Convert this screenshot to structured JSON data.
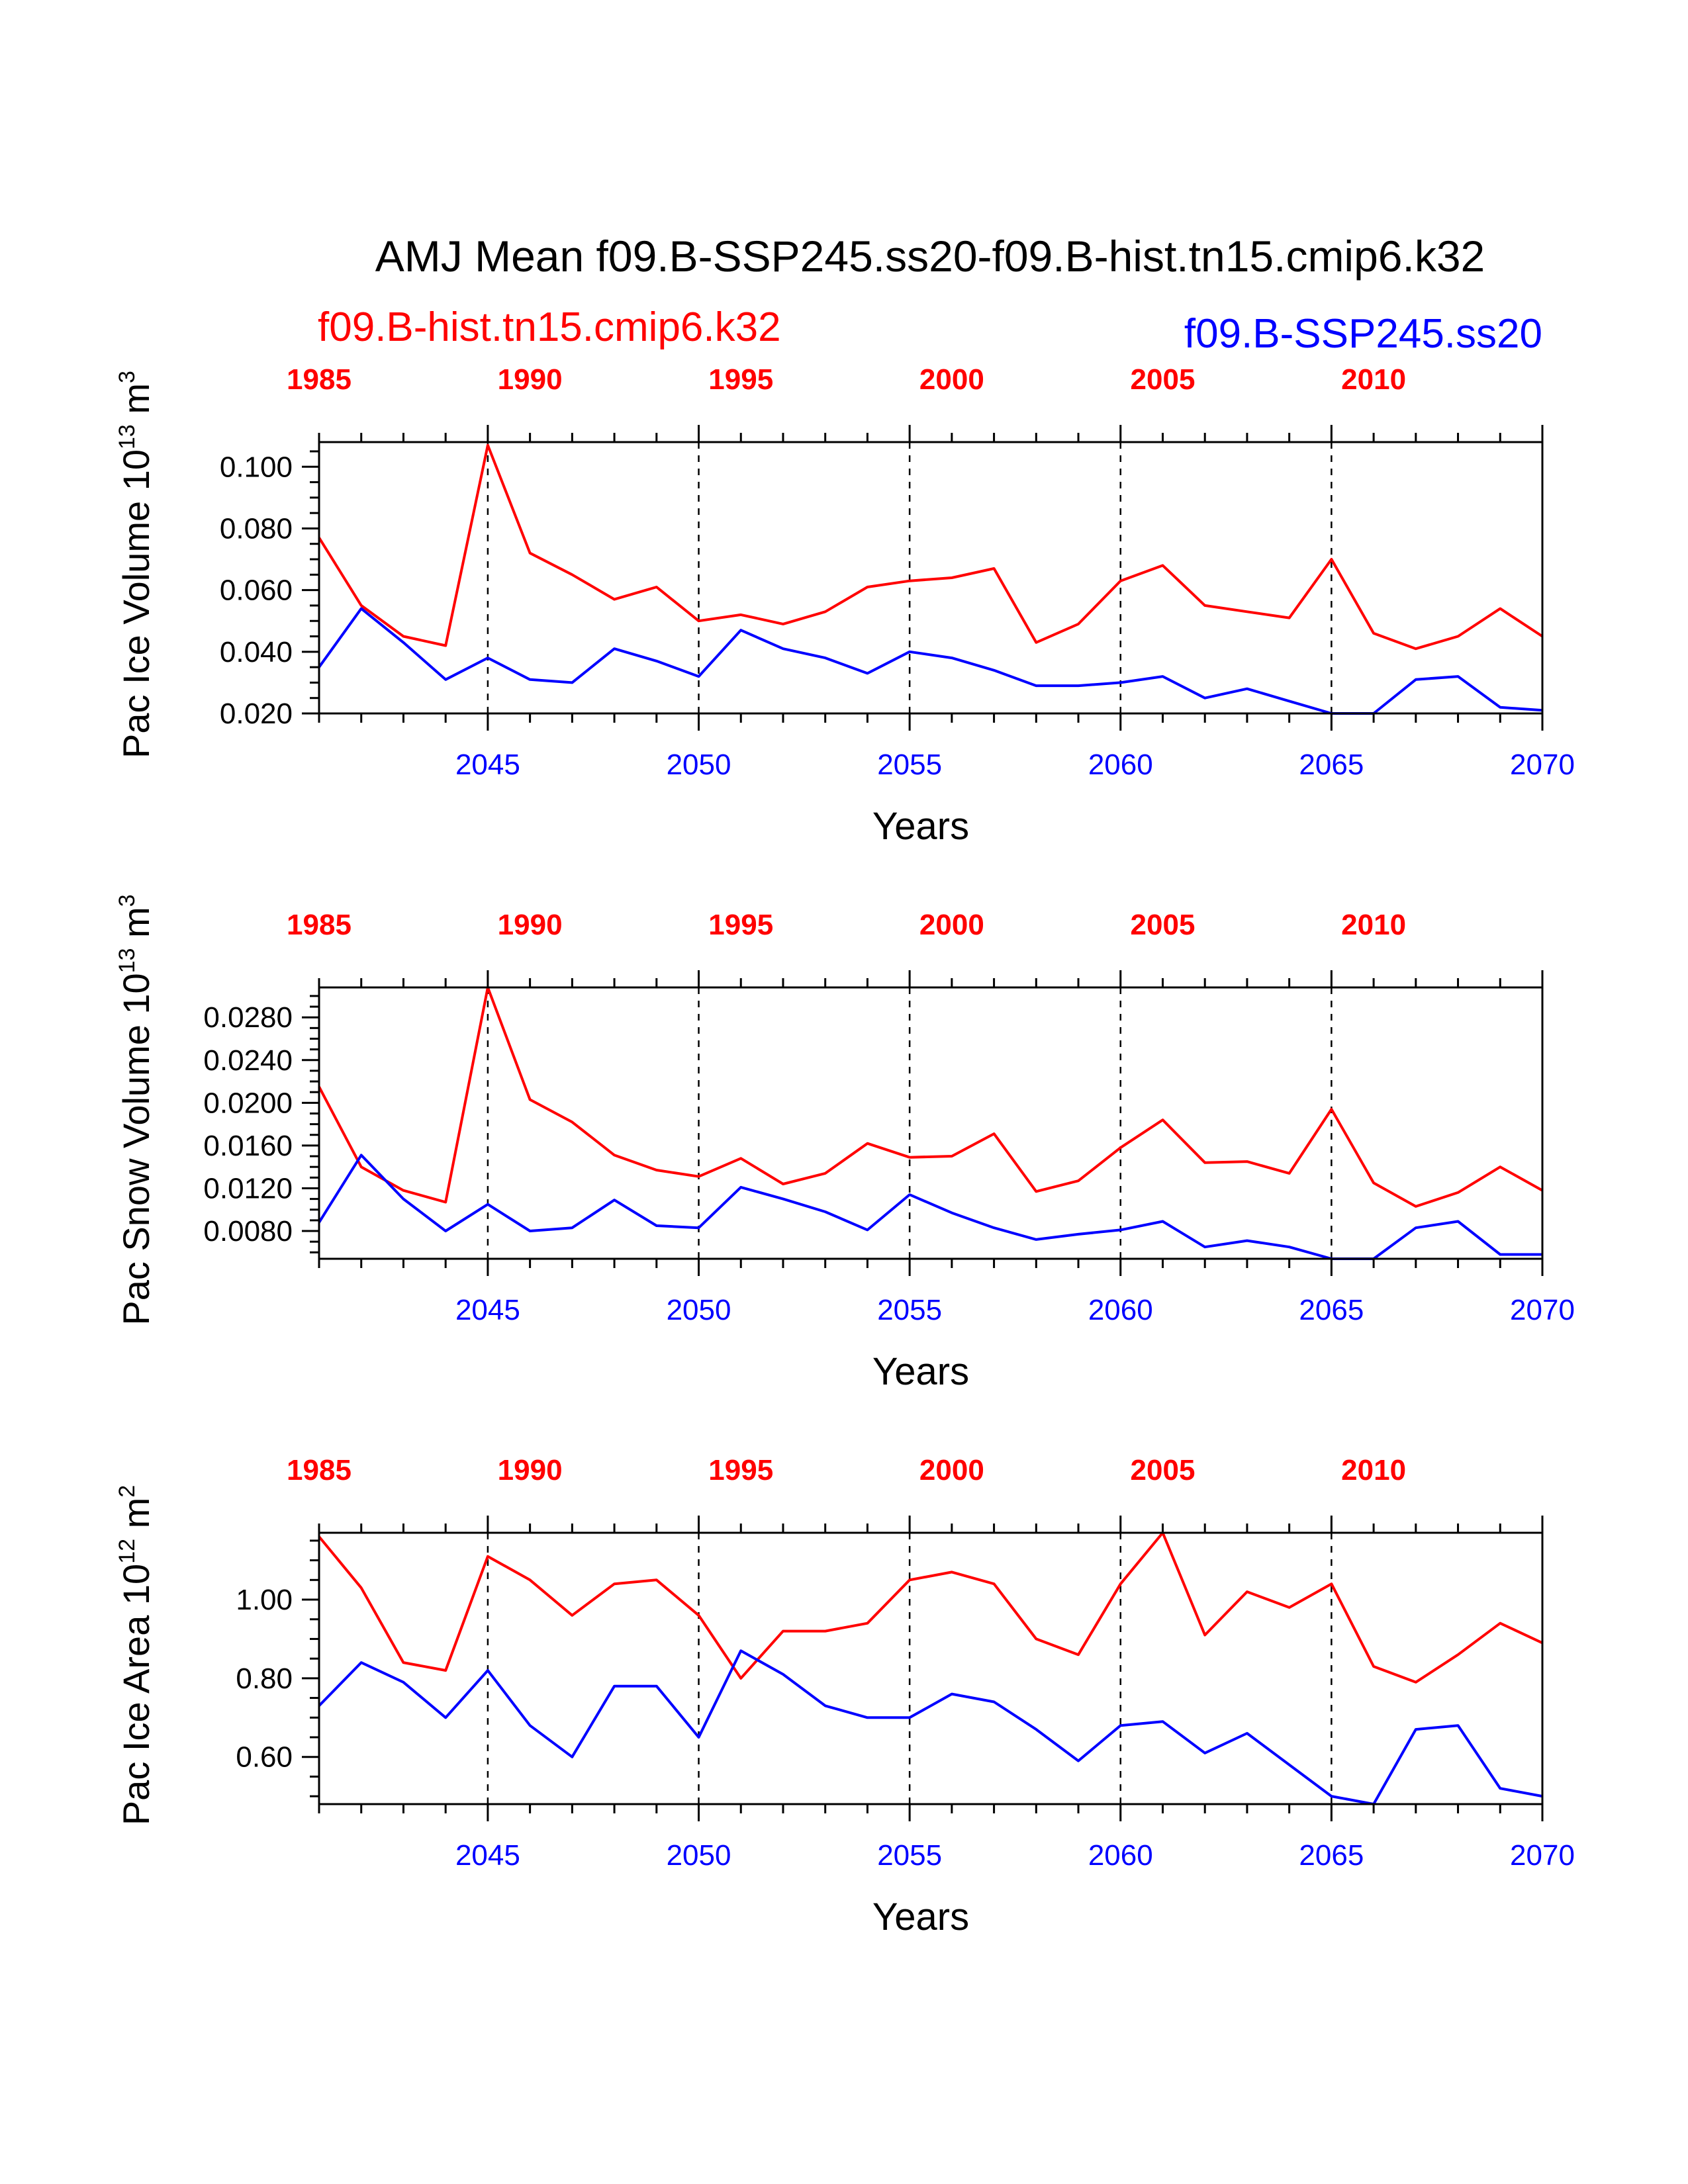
{
  "title": "AMJ Mean f09.B-SSP245.ss20-f09.B-hist.tn15.cmip6.k32",
  "subtitle_left": "f09.B-hist.tn15.cmip6.k32",
  "subtitle_right": "f09.B-SSP245.ss20",
  "colors": {
    "hist": "#ff0000",
    "ssp": "#0000ff"
  },
  "chart_data": [
    {
      "type": "line",
      "ylabel": "Pac Ice Volume 10",
      "ylabel_exp": "13",
      "ylabel_unit": " m",
      "ylabel_unit_exp": "3",
      "xlabel": "Years",
      "xlim": [
        2041,
        2070
      ],
      "ylim": [
        0.02,
        0.108
      ],
      "yticks": [
        0.02,
        0.04,
        0.06,
        0.08,
        0.1
      ],
      "ytick_labels": [
        "0.020",
        "0.040",
        "0.060",
        "0.080",
        "0.100"
      ],
      "x": [
        2041,
        2042,
        2043,
        2044,
        2045,
        2046,
        2047,
        2048,
        2049,
        2050,
        2051,
        2052,
        2053,
        2054,
        2055,
        2056,
        2057,
        2058,
        2059,
        2060,
        2061,
        2062,
        2063,
        2064,
        2065,
        2066,
        2067,
        2068,
        2069,
        2070
      ],
      "series": [
        {
          "key": "hist",
          "values": [
            0.077,
            0.055,
            0.045,
            0.042,
            0.107,
            0.072,
            0.065,
            0.057,
            0.061,
            0.05,
            0.052,
            0.049,
            0.053,
            0.061,
            0.063,
            0.064,
            0.067,
            0.043,
            0.049,
            0.063,
            0.068,
            0.055,
            0.053,
            0.051,
            0.07,
            0.046,
            0.041,
            0.045,
            0.054,
            0.045
          ]
        },
        {
          "key": "ssp",
          "values": [
            0.035,
            0.054,
            0.043,
            0.031,
            0.038,
            0.031,
            0.03,
            0.041,
            0.037,
            0.032,
            0.047,
            0.041,
            0.038,
            0.033,
            0.04,
            0.038,
            0.034,
            0.029,
            0.029,
            0.03,
            0.032,
            0.025,
            0.028,
            0.024,
            0.02,
            0.02,
            0.031,
            0.032,
            0.022,
            0.021
          ]
        }
      ]
    },
    {
      "type": "line",
      "ylabel": "Pac Snow Volume 10",
      "ylabel_exp": "13",
      "ylabel_unit": " m",
      "ylabel_unit_exp": "3",
      "xlabel": "Years",
      "xlim": [
        2041,
        2070
      ],
      "ylim": [
        0.0054,
        0.0308
      ],
      "yticks": [
        0.008,
        0.012,
        0.016,
        0.02,
        0.024,
        0.028
      ],
      "ytick_labels": [
        "0.0080",
        "0.0120",
        "0.0160",
        "0.0200",
        "0.0240",
        "0.0280"
      ],
      "x": [
        2041,
        2042,
        2043,
        2044,
        2045,
        2046,
        2047,
        2048,
        2049,
        2050,
        2051,
        2052,
        2053,
        2054,
        2055,
        2056,
        2057,
        2058,
        2059,
        2060,
        2061,
        2062,
        2063,
        2064,
        2065,
        2066,
        2067,
        2068,
        2069,
        2070
      ],
      "series": [
        {
          "key": "hist",
          "values": [
            0.0215,
            0.014,
            0.0118,
            0.0107,
            0.0308,
            0.0203,
            0.0182,
            0.0151,
            0.0137,
            0.0131,
            0.0148,
            0.0124,
            0.0134,
            0.0162,
            0.0149,
            0.015,
            0.0171,
            0.0117,
            0.0127,
            0.0158,
            0.0184,
            0.0144,
            0.0145,
            0.0134,
            0.0194,
            0.0125,
            0.0103,
            0.0116,
            0.014,
            0.0118
          ]
        },
        {
          "key": "ssp",
          "values": [
            0.0088,
            0.0151,
            0.011,
            0.008,
            0.0105,
            0.008,
            0.0083,
            0.0109,
            0.0085,
            0.0083,
            0.0121,
            0.011,
            0.0098,
            0.0081,
            0.0114,
            0.0097,
            0.0083,
            0.0072,
            0.0077,
            0.0081,
            0.0089,
            0.0065,
            0.0071,
            0.0065,
            0.0054,
            0.0054,
            0.0083,
            0.0089,
            0.0058,
            0.0058
          ]
        }
      ]
    },
    {
      "type": "line",
      "ylabel": "Pac Ice Area 10",
      "ylabel_exp": "12",
      "ylabel_unit": " m",
      "ylabel_unit_exp": "2",
      "xlabel": "Years",
      "xlim": [
        2041,
        2070
      ],
      "ylim": [
        0.48,
        1.17
      ],
      "yticks": [
        0.6,
        0.8,
        1.0
      ],
      "ytick_labels": [
        "0.60",
        "0.80",
        "1.00"
      ],
      "x": [
        2041,
        2042,
        2043,
        2044,
        2045,
        2046,
        2047,
        2048,
        2049,
        2050,
        2051,
        2052,
        2053,
        2054,
        2055,
        2056,
        2057,
        2058,
        2059,
        2060,
        2061,
        2062,
        2063,
        2064,
        2065,
        2066,
        2067,
        2068,
        2069,
        2070
      ],
      "series": [
        {
          "key": "hist",
          "values": [
            1.16,
            1.03,
            0.84,
            0.82,
            1.11,
            1.05,
            0.96,
            1.04,
            1.05,
            0.96,
            0.8,
            0.92,
            0.92,
            0.94,
            1.05,
            1.07,
            1.04,
            0.9,
            0.86,
            1.04,
            1.17,
            0.91,
            1.02,
            0.98,
            1.04,
            0.83,
            0.79,
            0.86,
            0.94,
            0.89
          ]
        },
        {
          "key": "ssp",
          "values": [
            0.73,
            0.84,
            0.79,
            0.7,
            0.82,
            0.68,
            0.6,
            0.78,
            0.78,
            0.65,
            0.87,
            0.81,
            0.73,
            0.7,
            0.7,
            0.76,
            0.74,
            0.67,
            0.59,
            0.68,
            0.69,
            0.61,
            0.66,
            0.58,
            0.5,
            0.48,
            0.67,
            0.68,
            0.52,
            0.5
          ]
        }
      ]
    }
  ],
  "bottom_ticks": [
    "2045",
    "2050",
    "2055",
    "2060",
    "2065",
    "2070"
  ],
  "top_ticks": [
    "1985",
    "1990",
    "1995",
    "2000",
    "2005",
    "2010"
  ]
}
